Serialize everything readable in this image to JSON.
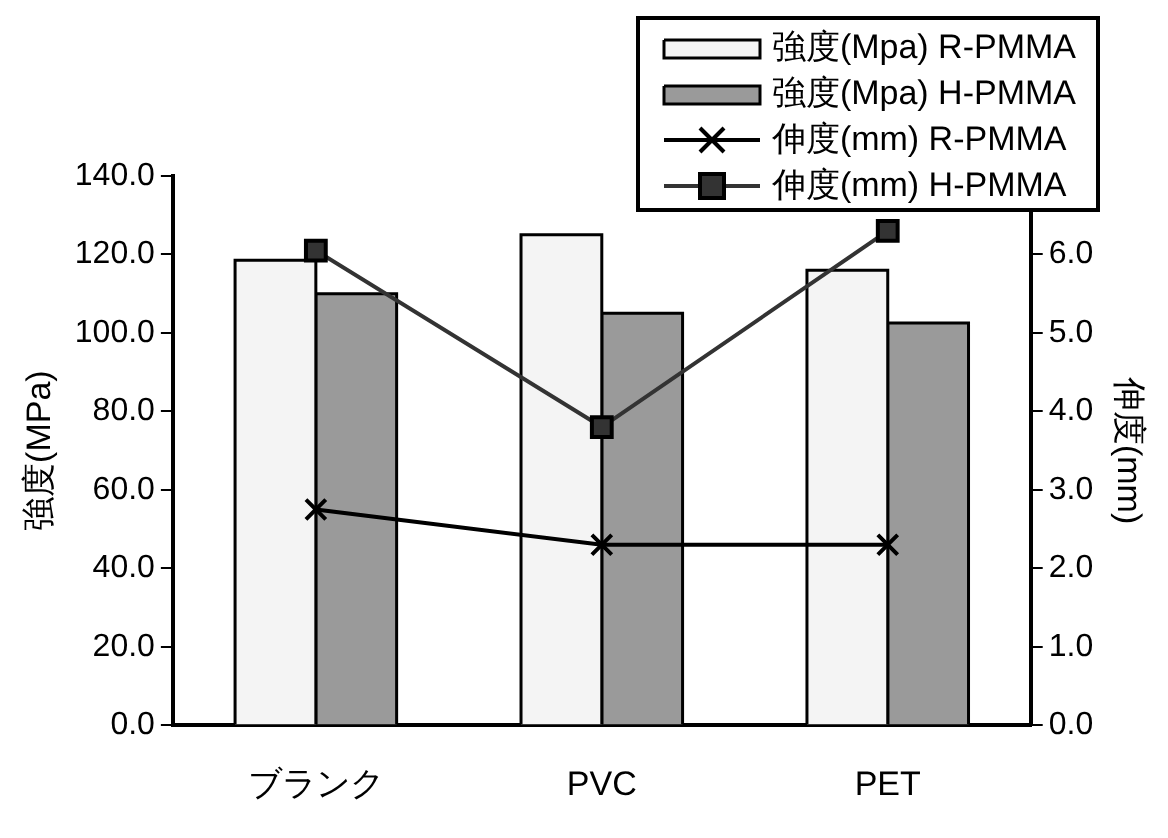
{
  "chart_data": {
    "type": "bar",
    "categories": [
      "ブランク",
      "PVC",
      "PET"
    ],
    "ylabel": "強度(MPa)",
    "y2label": "伸度(mm)",
    "ylim": [
      0,
      140
    ],
    "yticks": [
      {
        "value": 0,
        "label": "0.0"
      },
      {
        "value": 20,
        "label": "20.0"
      },
      {
        "value": 40,
        "label": "40.0"
      },
      {
        "value": 60,
        "label": "60.0"
      },
      {
        "value": 80,
        "label": "80.0"
      },
      {
        "value": 100,
        "label": "100.0"
      },
      {
        "value": 120,
        "label": "120.0"
      },
      {
        "value": 140,
        "label": "140.0"
      }
    ],
    "y2lim": [
      0,
      7
    ],
    "y2ticks": [
      {
        "value": 0,
        "label": "0.0"
      },
      {
        "value": 1,
        "label": "1.0"
      },
      {
        "value": 2,
        "label": "2.0"
      },
      {
        "value": 3,
        "label": "3.0"
      },
      {
        "value": 4,
        "label": "4.0"
      },
      {
        "value": 5,
        "label": "5.0"
      },
      {
        "value": 6,
        "label": "6.0"
      }
    ],
    "grid": false,
    "legend": "top right",
    "series": [
      {
        "name": "強度(Mpa) R-PMMA",
        "color": "#f4f4f4",
        "values": [
          118.5,
          125,
          116
        ]
      },
      {
        "name": "強度(Mpa) H-PMMA",
        "color": "#9a9a9a",
        "values": [
          110,
          105,
          102.5
        ]
      },
      {
        "name": "伸度(mm) R-PMMA",
        "type": "line",
        "axis": "y2",
        "marker": "cross",
        "color": "#000000",
        "values": [
          2.75,
          2.3,
          2.3
        ]
      },
      {
        "name": "伸度(mm) H-PMMA",
        "type": "line",
        "axis": "y2",
        "marker": "square",
        "color": "#333333",
        "values": [
          6.05,
          3.8,
          6.3
        ]
      }
    ]
  }
}
